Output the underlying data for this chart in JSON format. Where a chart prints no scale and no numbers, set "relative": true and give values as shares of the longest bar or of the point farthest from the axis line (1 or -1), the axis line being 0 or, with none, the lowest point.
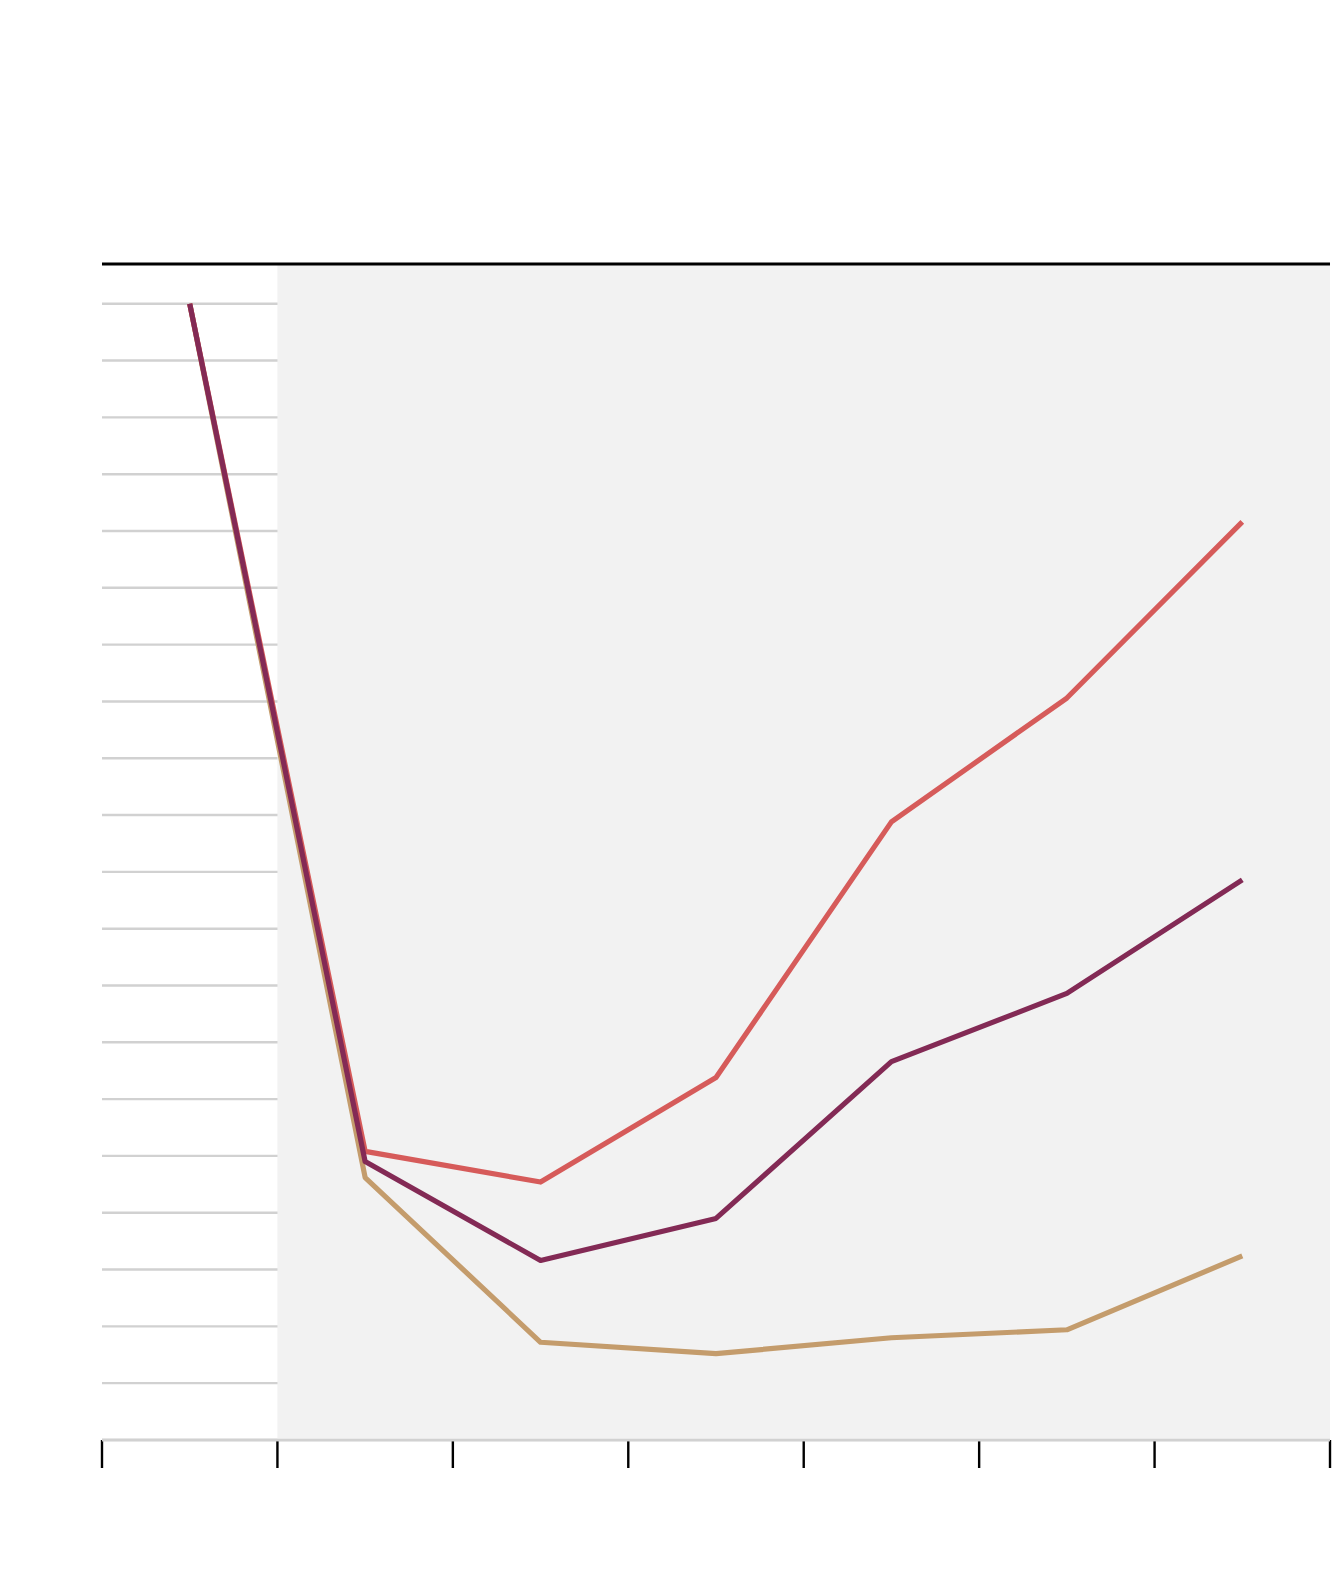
{
  "chart_data": {
    "type": "line",
    "relative": true,
    "grid": "y",
    "marker": "none",
    "line_style": "solid",
    "categories": [
      null,
      null,
      null,
      null,
      null,
      null,
      null
    ],
    "series": [
      {
        "color": "#c49c6c",
        "values": [
          1.0,
          0.231,
          0.086,
          0.076,
          0.09,
          0.097,
          0.162
        ]
      },
      {
        "color": "#d65b5a",
        "values": [
          1.0,
          0.254,
          0.227,
          0.319,
          0.544,
          0.653,
          0.808
        ]
      },
      {
        "color": "#832a55",
        "values": [
          1.0,
          0.245,
          0.158,
          0.195,
          0.333,
          0.393,
          0.493
        ]
      }
    ]
  }
}
